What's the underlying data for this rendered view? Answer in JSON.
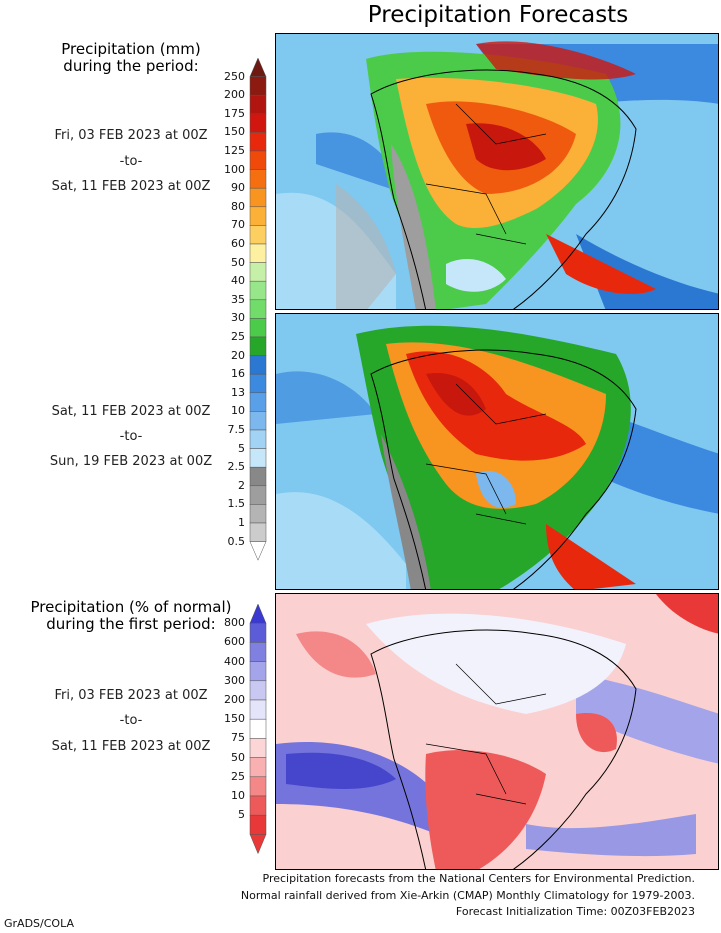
{
  "title": "Precipitation Forecasts",
  "legend_mm": {
    "heading": [
      "Precipitation (mm)",
      "during the period:"
    ],
    "levels": [
      "250",
      "200",
      "175",
      "150",
      "125",
      "100",
      "90",
      "80",
      "70",
      "60",
      "50",
      "40",
      "35",
      "30",
      "25",
      "20",
      "16",
      "13",
      "10",
      "7.5",
      "5",
      "2.5",
      "2",
      "1.5",
      "1",
      "0.5"
    ],
    "colors": [
      "#6e1a12",
      "#8c1a10",
      "#b01510",
      "#d0160e",
      "#e8280c",
      "#f04a0a",
      "#f56e10",
      "#f89420",
      "#fbb038",
      "#fccf60",
      "#fdf0a0",
      "#c6f0a8",
      "#98e68a",
      "#72dc6a",
      "#4ccb4a",
      "#26a72a",
      "#2b78d2",
      "#3b8ae0",
      "#5aa0e8",
      "#7cb8ee",
      "#a2d2f4",
      "#c6e6fa",
      "#888888",
      "#9e9e9e",
      "#b4b4b4",
      "#cccccc"
    ]
  },
  "period1": {
    "from": "Fri, 03 FEB 2023 at 00Z",
    "sep": "-to-",
    "to": "Sat, 11 FEB 2023 at 00Z"
  },
  "period2": {
    "from": "Sat, 11 FEB 2023 at 00Z",
    "sep": "-to-",
    "to": "Sun, 19 FEB 2023 at 00Z"
  },
  "legend_pct": {
    "heading": [
      "Precipitation (% of normal)",
      "during the first period:"
    ],
    "levels": [
      "800",
      "600",
      "400",
      "300",
      "200",
      "150",
      "75",
      "50",
      "25",
      "10",
      "5"
    ],
    "colors": [
      "#3a3ad0",
      "#5c5cd8",
      "#8080e0",
      "#a4a4ea",
      "#c8c8f2",
      "#e4e4fa",
      "#ffffff",
      "#fcd6d6",
      "#f8b0b0",
      "#f48888",
      "#ee5a5a",
      "#e83838"
    ]
  },
  "period3": {
    "from": "Fri, 03 FEB 2023 at 00Z",
    "sep": "-to-",
    "to": "Sat, 11 FEB 2023 at 00Z"
  },
  "credits": [
    "Precipitation forecasts from the National Centers for Environmental Prediction.",
    "Normal rainfall derived from Xie-Arkin (CMAP) Monthly Climatology for 1979-2003.",
    "Forecast Initialization Time: 00Z03FEB2023"
  ],
  "footer": "GrADS/COLA"
}
